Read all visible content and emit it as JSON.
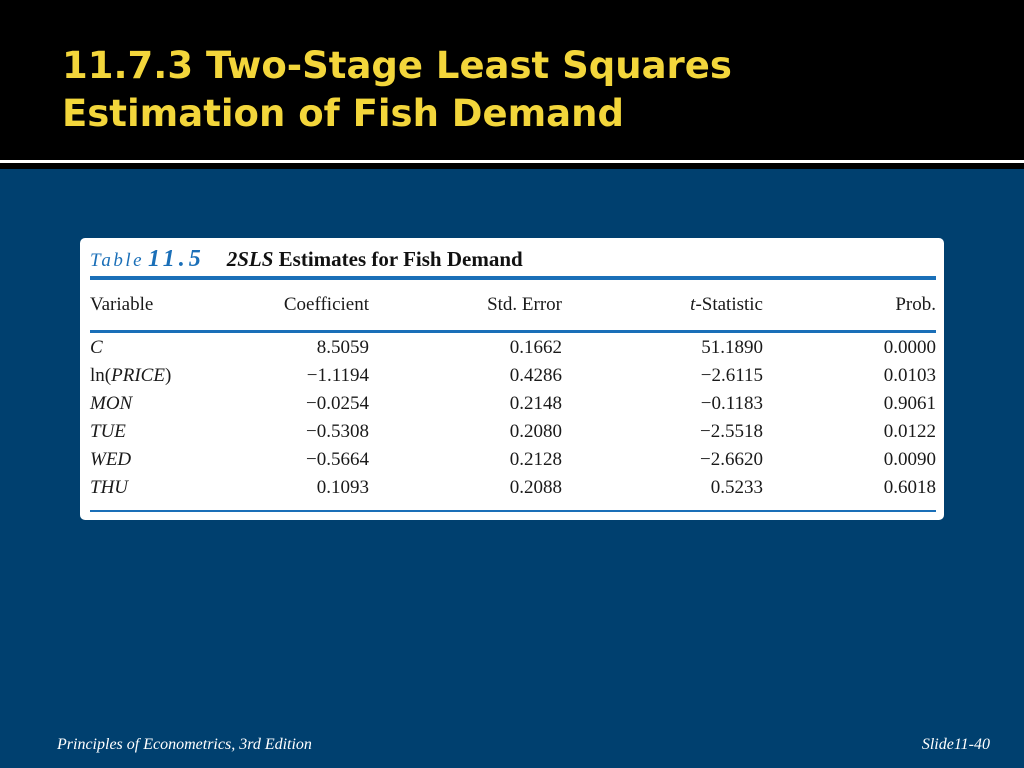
{
  "slide": {
    "title_line1": "11.7.3 Two-Stage Least Squares",
    "title_line2": "Estimation of Fish Demand",
    "footer_left": "Principles of Econometrics, 3rd Edition",
    "footer_right": "Slide11-40",
    "colors": {
      "background": "#00406f",
      "header": "#000000",
      "title": "#f3d63b",
      "table_accent": "#1a6fb8"
    }
  },
  "table": {
    "label_word": "Table",
    "label_number": "11.5",
    "title_italic": "2SLS",
    "title_rest": " Estimates for Fish Demand",
    "headers": {
      "variable": "Variable",
      "coefficient": "Coefficient",
      "std_error": "Std. Error",
      "t_prefix": "t",
      "t_rest": "-Statistic",
      "prob": "Prob."
    },
    "rows": [
      {
        "pre": "",
        "var": "C",
        "post": "",
        "coef": "8.5059",
        "se": "0.1662",
        "t": "51.1890",
        "p": "0.0000"
      },
      {
        "pre": "ln(",
        "var": "PRICE",
        "post": ")",
        "coef": "−1.1194",
        "se": "0.4286",
        "t": "−2.6115",
        "p": "0.0103"
      },
      {
        "pre": "",
        "var": "MON",
        "post": "",
        "coef": "−0.0254",
        "se": "0.2148",
        "t": "−0.1183",
        "p": "0.9061"
      },
      {
        "pre": "",
        "var": "TUE",
        "post": "",
        "coef": "−0.5308",
        "se": "0.2080",
        "t": "−2.5518",
        "p": "0.0122"
      },
      {
        "pre": "",
        "var": "WED",
        "post": "",
        "coef": "−0.5664",
        "se": "0.2128",
        "t": "−2.6620",
        "p": "0.0090"
      },
      {
        "pre": "",
        "var": "THU",
        "post": "",
        "coef": "0.1093",
        "se": "0.2088",
        "t": "0.5233",
        "p": "0.6018"
      }
    ]
  }
}
